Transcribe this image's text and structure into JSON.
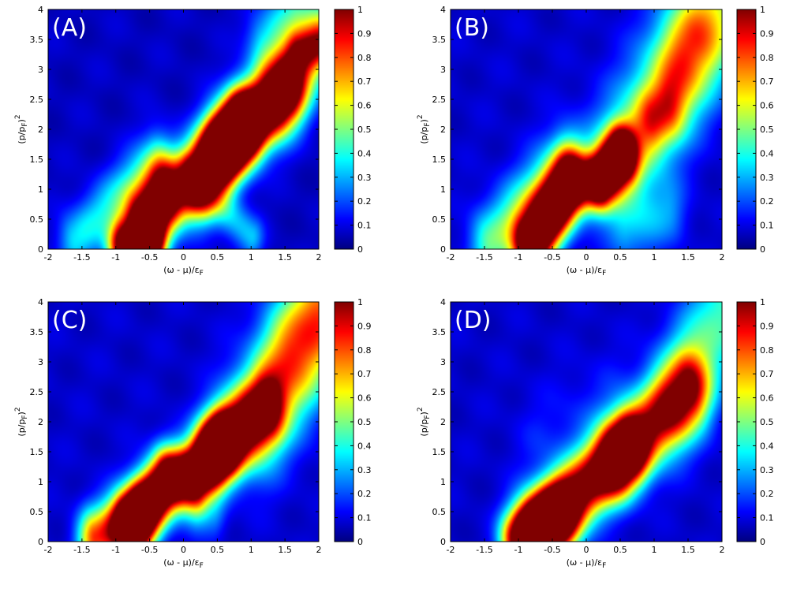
{
  "figure": {
    "colormap": "jet",
    "background": "#ffffff",
    "colormap_stops": [
      "#00008f",
      "#0000ff",
      "#00ffff",
      "#ffff00",
      "#ff0000",
      "#800000"
    ]
  },
  "chart_data": [
    {
      "type": "heatmap",
      "panel_label": "(A)",
      "xlabel": "(ω - μ)/ε",
      "xlabel_sub": "F",
      "ylabel": "(p/p",
      "ylabel_sub": "F",
      "ylabel_tail": ")",
      "ylabel_sup": "2",
      "xlim": [
        -2,
        2
      ],
      "ylim": [
        0,
        4
      ],
      "xticks": [
        "-2",
        "-1.5",
        "-1",
        "-0.5",
        "0",
        "0.5",
        "1",
        "1.5",
        "2"
      ],
      "yticks": [
        "0",
        "0.5",
        "1",
        "1.5",
        "2",
        "2.5",
        "3",
        "3.5",
        "4"
      ],
      "clim": [
        0,
        1
      ],
      "colorbar_ticks": [
        "0",
        "0.1",
        "0.2",
        "0.3",
        "0.4",
        "0.5",
        "0.6",
        "0.7",
        "0.8",
        "0.9",
        "1"
      ],
      "background_intensity": 0.04,
      "blobs": [
        {
          "x1": -0.55,
          "y1": 0.45,
          "x2": -0.3,
          "y2": 0.85,
          "width": 0.2,
          "amp": 1.35
        },
        {
          "x1": -0.9,
          "y1": 0.05,
          "x2": -0.5,
          "y2": 0.05,
          "width": 0.15,
          "amp": 1.0
        },
        {
          "x1": -1.6,
          "y1": 0.15,
          "x2": -0.4,
          "y2": 1.5,
          "width": 0.18,
          "amp": 0.3
        },
        {
          "x1": 0.2,
          "y1": 1.15,
          "x2": 0.85,
          "y2": 2.05,
          "width": 0.2,
          "amp": 1.5
        },
        {
          "x1": 0.6,
          "y1": 1.7,
          "x2": 1.5,
          "y2": 2.65,
          "width": 0.2,
          "amp": 0.92
        },
        {
          "x1": 1.4,
          "y1": 2.55,
          "x2": 2.0,
          "y2": 3.5,
          "width": 0.23,
          "amp": 0.62
        },
        {
          "x1": 1.7,
          "y1": 3.3,
          "x2": 2.0,
          "y2": 3.4,
          "width": 0.12,
          "amp": 0.38
        },
        {
          "x1": 1.2,
          "y1": 3.5,
          "x2": 1.6,
          "y2": 4.0,
          "width": 0.2,
          "amp": 0.25
        },
        {
          "x1": 0.45,
          "y1": 0.8,
          "x2": 1.0,
          "y2": 0.2,
          "width": 0.13,
          "amp": 0.25
        }
      ]
    },
    {
      "type": "heatmap",
      "panel_label": "(B)",
      "xlabel": "(ω - μ)/ε",
      "xlabel_sub": "F",
      "ylabel": "(p/p",
      "ylabel_sub": "F",
      "ylabel_tail": ")",
      "ylabel_sup": "2",
      "xlim": [
        -2,
        2
      ],
      "ylim": [
        0,
        4
      ],
      "xticks": [
        "-2",
        "-1.5",
        "-1",
        "-0.5",
        "0",
        "0.5",
        "1",
        "1.5",
        "2"
      ],
      "yticks": [
        "0",
        "0.5",
        "1",
        "1.5",
        "2",
        "2.5",
        "3",
        "3.5",
        "4"
      ],
      "clim": [
        0,
        1
      ],
      "colorbar_ticks": [
        "0",
        "0.1",
        "0.2",
        "0.3",
        "0.4",
        "0.5",
        "0.6",
        "0.7",
        "0.8",
        "0.9",
        "1"
      ],
      "background_intensity": 0.05,
      "blobs": [
        {
          "x1": -0.8,
          "y1": 0.1,
          "x2": -0.25,
          "y2": 1.05,
          "width": 0.18,
          "amp": 1.4
        },
        {
          "x1": -1.4,
          "y1": 0.1,
          "x2": -0.3,
          "y2": 1.4,
          "width": 0.22,
          "amp": 0.4
        },
        {
          "x1": 0.2,
          "y1": 1.15,
          "x2": 0.5,
          "y2": 1.55,
          "width": 0.16,
          "amp": 1.4
        },
        {
          "x1": 0.6,
          "y1": 1.6,
          "x2": 1.6,
          "y2": 3.5,
          "width": 0.35,
          "amp": 0.45
        },
        {
          "x1": 1.0,
          "y1": 2.15,
          "x2": 1.2,
          "y2": 2.3,
          "width": 0.2,
          "amp": 0.38
        },
        {
          "x1": 1.5,
          "y1": 3.2,
          "x2": 2.0,
          "y2": 4.0,
          "width": 0.3,
          "amp": 0.33
        },
        {
          "x1": 0.6,
          "y1": 0.3,
          "x2": 1.2,
          "y2": 0.6,
          "width": 0.2,
          "amp": 0.18
        }
      ]
    },
    {
      "type": "heatmap",
      "panel_label": "(C)",
      "xlabel": "(ω - μ)/ε",
      "xlabel_sub": "F",
      "ylabel": "(p/p",
      "ylabel_sub": "F",
      "ylabel_tail": ")",
      "ylabel_sup": "2",
      "xlim": [
        -2,
        2
      ],
      "ylim": [
        0,
        4
      ],
      "xticks": [
        "-2",
        "-1.5",
        "-1",
        "-0.5",
        "0",
        "0.5",
        "1",
        "1.5",
        "2"
      ],
      "yticks": [
        "0",
        "0.5",
        "1",
        "1.5",
        "2",
        "2.5",
        "3",
        "3.5",
        "4"
      ],
      "clim": [
        0,
        1
      ],
      "colorbar_ticks": [
        "0",
        "0.1",
        "0.2",
        "0.3",
        "0.4",
        "0.5",
        "0.6",
        "0.7",
        "0.8",
        "0.9",
        "1"
      ],
      "background_intensity": 0.05,
      "blobs": [
        {
          "x1": -0.75,
          "y1": 0.3,
          "x2": -0.25,
          "y2": 1.0,
          "width": 0.18,
          "amp": 1.4
        },
        {
          "x1": -1.3,
          "y1": 0.05,
          "x2": -0.7,
          "y2": 0.4,
          "width": 0.18,
          "amp": 0.75
        },
        {
          "x1": 0.15,
          "y1": 1.1,
          "x2": 0.55,
          "y2": 1.6,
          "width": 0.18,
          "amp": 1.4
        },
        {
          "x1": 0.5,
          "y1": 1.55,
          "x2": 1.2,
          "y2": 2.2,
          "width": 0.2,
          "amp": 0.88
        },
        {
          "x1": 1.1,
          "y1": 2.1,
          "x2": 2.0,
          "y2": 3.5,
          "width": 0.33,
          "amp": 0.5
        },
        {
          "x1": 1.6,
          "y1": 3.3,
          "x2": 2.0,
          "y2": 4.0,
          "width": 0.3,
          "amp": 0.33
        },
        {
          "x1": 0.25,
          "y1": 0.5,
          "x2": 0.45,
          "y2": 0.4,
          "width": 0.13,
          "amp": 0.15
        }
      ]
    },
    {
      "type": "heatmap",
      "panel_label": "(D)",
      "xlabel": "(ω - μ)/ε",
      "xlabel_sub": "F",
      "ylabel": "(p/p",
      "ylabel_sub": "F",
      "ylabel_tail": ")",
      "ylabel_sup": "2",
      "xlim": [
        -2,
        2
      ],
      "ylim": [
        0,
        4
      ],
      "xticks": [
        "-2",
        "-1.5",
        "-1",
        "-0.5",
        "0",
        "0.5",
        "1",
        "1.5",
        "2"
      ],
      "yticks": [
        "0",
        "0.5",
        "1",
        "1.5",
        "2",
        "2.5",
        "3",
        "3.5",
        "4"
      ],
      "clim": [
        0,
        1
      ],
      "colorbar_ticks": [
        "0",
        "0.1",
        "0.2",
        "0.3",
        "0.4",
        "0.5",
        "0.6",
        "0.7",
        "0.8",
        "0.9",
        "1"
      ],
      "background_intensity": 0.05,
      "blobs": [
        {
          "x1": -0.7,
          "y1": 0.2,
          "x2": 0.6,
          "y2": 1.55,
          "width": 0.2,
          "amp": 1.05
        },
        {
          "x1": -0.9,
          "y1": 0.05,
          "x2": -0.4,
          "y2": 0.4,
          "width": 0.2,
          "amp": 0.8
        },
        {
          "x1": 0.5,
          "y1": 1.4,
          "x2": 1.5,
          "y2": 2.5,
          "width": 0.22,
          "amp": 0.76
        },
        {
          "x1": 1.3,
          "y1": 2.4,
          "x2": 2.0,
          "y2": 3.8,
          "width": 0.3,
          "amp": 0.38
        },
        {
          "x1": -1.1,
          "y1": 0.05,
          "x2": -0.6,
          "y2": 0.4,
          "width": 0.15,
          "amp": 0.35
        },
        {
          "x1": -0.6,
          "y1": 1.6,
          "x2": 0.3,
          "y2": 2.2,
          "width": 0.3,
          "amp": 0.08
        }
      ]
    }
  ]
}
